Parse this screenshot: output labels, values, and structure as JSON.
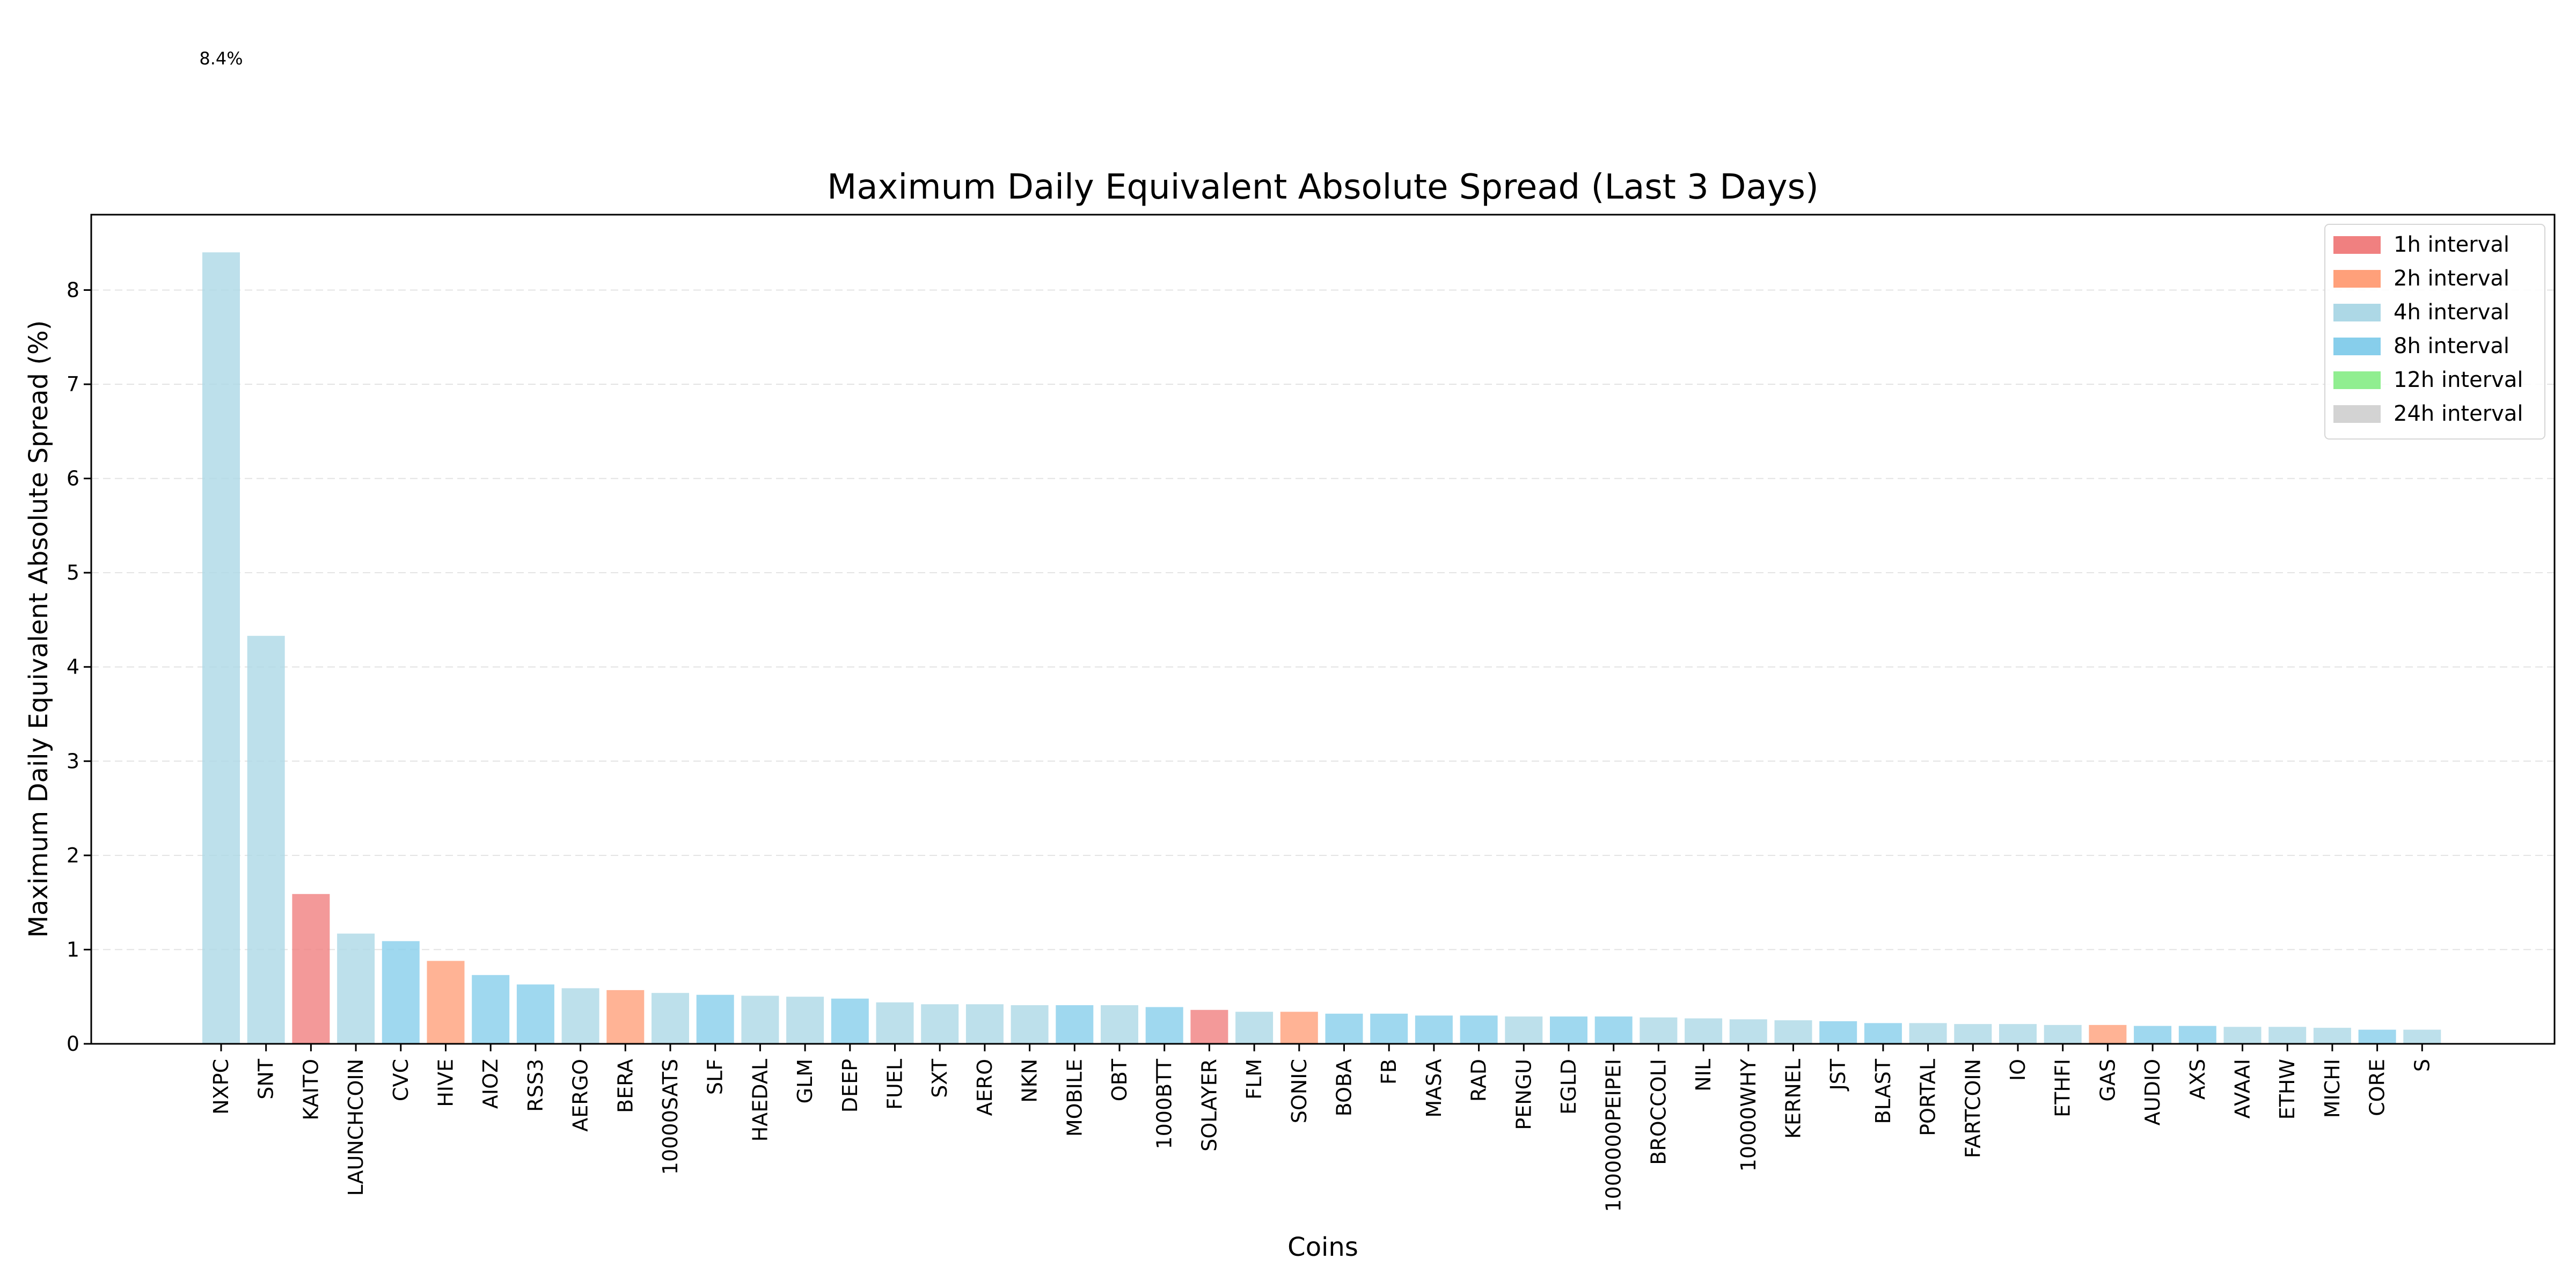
{
  "chart_data": {
    "type": "bar",
    "title": "Maximum Daily Equivalent Absolute Spread (Last 3 Days)",
    "xlabel": "Coins",
    "ylabel": "Maximum Daily Equivalent Absolute Spread (%)",
    "ylim": [
      0,
      8.8
    ],
    "yticks": [
      0,
      1,
      2,
      3,
      4,
      5,
      6,
      7,
      8
    ],
    "grid": "y, dashed",
    "legend_placement": "top-right",
    "annotations": [
      {
        "category": "NXPC",
        "text": "8.4%"
      }
    ],
    "legend": [
      {
        "key": "1h",
        "label": "1h interval",
        "color": "#F08080"
      },
      {
        "key": "2h",
        "label": "2h interval",
        "color": "#FFA07A"
      },
      {
        "key": "4h",
        "label": "4h interval",
        "color": "#ADD8E6"
      },
      {
        "key": "8h",
        "label": "8h interval",
        "color": "#87CEEB"
      },
      {
        "key": "12h",
        "label": "12h interval",
        "color": "#90EE90"
      },
      {
        "key": "24h",
        "label": "24h interval",
        "color": "#D3D3D3"
      }
    ],
    "categories": [
      "NXPC",
      "SNT",
      "KAITO",
      "LAUNCHCOIN",
      "CVC",
      "HIVE",
      "AIOZ",
      "RSS3",
      "AERGO",
      "BERA",
      "10000SATS",
      "SLF",
      "HAEDAL",
      "GLM",
      "DEEP",
      "FUEL",
      "SXT",
      "AERO",
      "NKN",
      "MOBILE",
      "OBT",
      "1000BTT",
      "SOLAYER",
      "FLM",
      "SONIC",
      "BOBA",
      "FB",
      "MASA",
      "RAD",
      "PENGU",
      "EGLD",
      "1000000PEIPEI",
      "BROCCOLI",
      "NIL",
      "10000WHY",
      "KERNEL",
      "JST",
      "BLAST",
      "PORTAL",
      "FARTCOIN",
      "IO",
      "ETHFI",
      "GAS",
      "AUDIO",
      "AXS",
      "AVAAI",
      "ETHW",
      "MICHI",
      "CORE",
      "S"
    ],
    "values": [
      8.4,
      4.33,
      1.59,
      1.17,
      1.09,
      0.88,
      0.73,
      0.63,
      0.59,
      0.57,
      0.54,
      0.52,
      0.51,
      0.5,
      0.48,
      0.44,
      0.42,
      0.42,
      0.41,
      0.41,
      0.41,
      0.39,
      0.36,
      0.34,
      0.34,
      0.32,
      0.32,
      0.3,
      0.3,
      0.29,
      0.29,
      0.29,
      0.28,
      0.27,
      0.26,
      0.25,
      0.24,
      0.22,
      0.22,
      0.21,
      0.21,
      0.2,
      0.2,
      0.19,
      0.19,
      0.18,
      0.18,
      0.17,
      0.15,
      0.15
    ],
    "intervals": [
      "4h",
      "4h",
      "1h",
      "4h",
      "8h",
      "2h",
      "8h",
      "8h",
      "4h",
      "2h",
      "4h",
      "8h",
      "4h",
      "4h",
      "8h",
      "4h",
      "4h",
      "4h",
      "4h",
      "8h",
      "4h",
      "8h",
      "1h",
      "4h",
      "2h",
      "8h",
      "8h",
      "8h",
      "8h",
      "4h",
      "8h",
      "8h",
      "4h",
      "4h",
      "4h",
      "4h",
      "8h",
      "8h",
      "4h",
      "4h",
      "4h",
      "4h",
      "2h",
      "8h",
      "8h",
      "4h",
      "4h",
      "4h",
      "8h",
      "4h"
    ]
  }
}
